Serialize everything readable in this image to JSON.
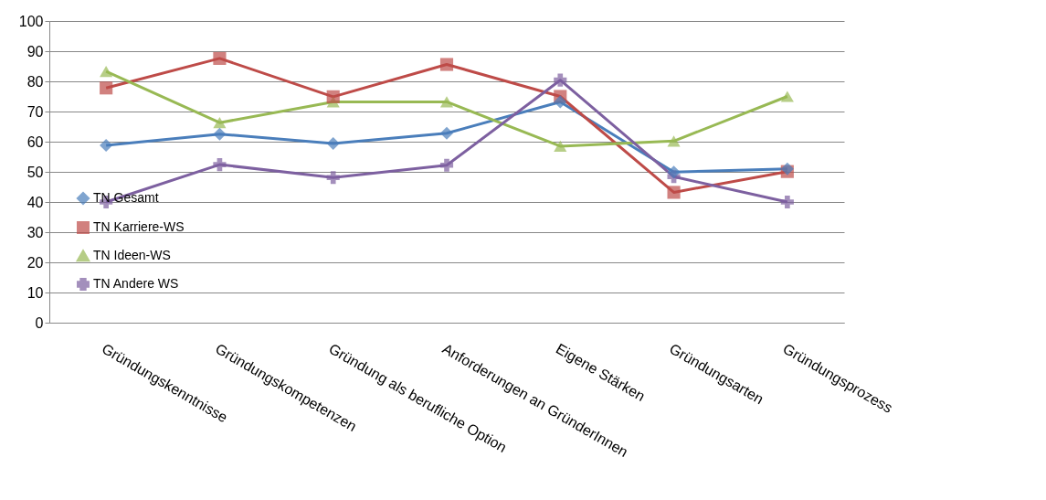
{
  "chart_data": {
    "type": "line",
    "categories": [
      "Gründungskenntnisse",
      "Gründungskompetenzen",
      "Gründung als berufliche Option",
      "Anforderungen an GründerInnen",
      "Eigene Stärken",
      "Gründungsarten",
      "Gründungsprozess"
    ],
    "series": [
      {
        "name": "TN Gesamt",
        "color": "#4a7ebb",
        "marker": "diamond",
        "values": [
          58.8,
          62.5,
          59.4,
          62.8,
          73.2,
          49.9,
          51
        ]
      },
      {
        "name": "TN Karriere-WS",
        "color": "#be4b48",
        "marker": "square",
        "values": [
          77.8,
          87.6,
          74.9,
          85.6,
          75,
          43.2,
          50.1
        ]
      },
      {
        "name": "TN Ideen-WS",
        "color": "#98b954",
        "marker": "triangle",
        "values": [
          83.3,
          66.3,
          73.2,
          73.2,
          58.5,
          60.2,
          75
        ]
      },
      {
        "name": "TN Andere WS",
        "color": "#7d60a0",
        "marker": "cross",
        "values": [
          40,
          52.4,
          48.1,
          52.2,
          80.4,
          48.4,
          40
        ]
      }
    ],
    "ylim": [
      0,
      100
    ],
    "yticks": [
      0,
      10,
      20,
      30,
      40,
      50,
      60,
      70,
      80,
      90,
      100
    ],
    "grid": "y",
    "legend": "bottom left"
  }
}
